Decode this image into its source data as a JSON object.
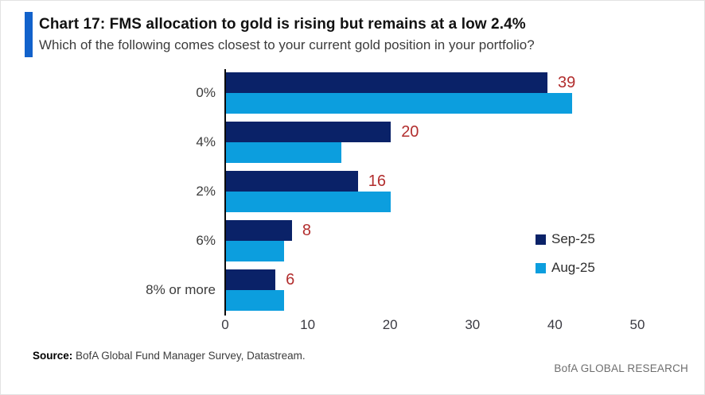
{
  "accent_color": "#1262CB",
  "header": {
    "title": "Chart 17: FMS allocation to gold is rising but remains at a low 2.4%",
    "subtitle": "Which of the following comes closest to your current gold position in your portfolio?"
  },
  "chart_data": {
    "type": "bar",
    "orientation": "horizontal",
    "title": "Chart 17: FMS allocation to gold is rising but remains at a low 2.4%",
    "subtitle": "Which of the following comes closest to your current gold position in your portfolio?",
    "categories": [
      "0%",
      "4%",
      "2%",
      "6%",
      "8% or more"
    ],
    "series": [
      {
        "name": "Sep-25",
        "color": "#0A2268",
        "values": [
          39,
          20,
          16,
          8,
          6
        ],
        "show_value_labels": true
      },
      {
        "name": "Aug-25",
        "color": "#0C9EDE",
        "values": [
          42,
          14,
          20,
          7,
          7
        ],
        "show_value_labels": false
      }
    ],
    "xlim": [
      0,
      50
    ],
    "x_ticks": [
      "0",
      "10",
      "20",
      "30",
      "40",
      "50"
    ],
    "value_label_color": "#B22E2E",
    "axis_color": "#0a0a0a",
    "grid": false,
    "legend_position": "right-middle"
  },
  "footer": {
    "source_label": "Source:",
    "source_text": " BofA Global Fund Manager Survey, Datastream.",
    "brand": "BofA GLOBAL RESEARCH"
  }
}
